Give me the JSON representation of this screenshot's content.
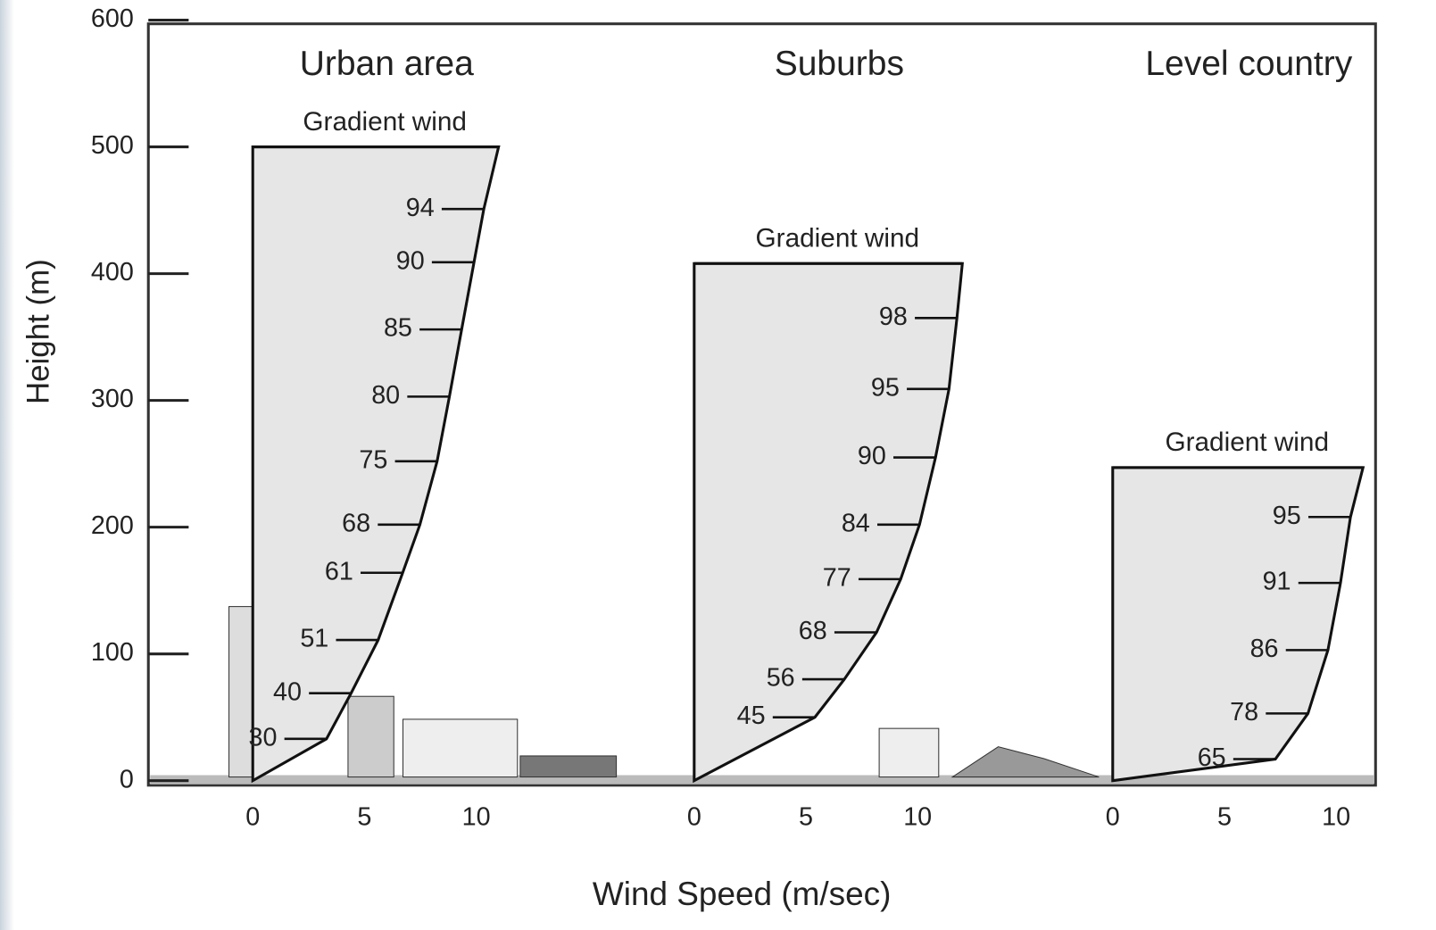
{
  "chart_data": {
    "type": "wind-profile",
    "ylabel": "Height (m)",
    "xlabel": "Wind Speed (m/sec)",
    "ylim": [
      0,
      600
    ],
    "yticks": [
      0,
      100,
      200,
      300,
      400,
      500,
      600
    ],
    "panels": [
      {
        "title": "Urban area",
        "gradient_label": "Gradient wind",
        "gradient_height": 500,
        "xlim": [
          0,
          11
        ],
        "xticks": [
          0,
          5,
          10
        ],
        "profile": {
          "percent": [
            30,
            40,
            51,
            61,
            68,
            75,
            80,
            85,
            90,
            94
          ],
          "height": [
            33,
            69,
            111,
            164,
            202,
            252,
            303,
            356,
            409,
            451
          ]
        }
      },
      {
        "title": "Suburbs",
        "gradient_label": "Gradient wind",
        "gradient_height": 408,
        "xlim": [
          0,
          12
        ],
        "xticks": [
          0,
          5,
          10
        ],
        "profile": {
          "percent": [
            45,
            56,
            68,
            77,
            84,
            90,
            95,
            98
          ],
          "height": [
            50,
            80,
            117,
            159,
            202,
            255,
            309,
            365
          ]
        }
      },
      {
        "title": "Level country",
        "gradient_label": "Gradient wind",
        "gradient_height": 247,
        "xlim": [
          0,
          11.2
        ],
        "xticks": [
          0,
          5,
          10
        ],
        "profile": {
          "percent": [
            65,
            78,
            86,
            91,
            95
          ],
          "height": [
            17,
            53,
            103,
            156,
            208
          ]
        }
      }
    ]
  }
}
